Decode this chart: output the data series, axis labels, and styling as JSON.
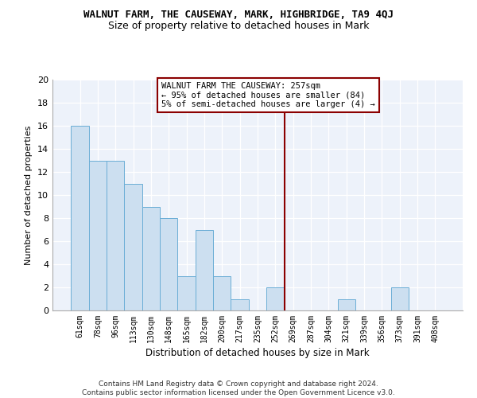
{
  "title": "WALNUT FARM, THE CAUSEWAY, MARK, HIGHBRIDGE, TA9 4QJ",
  "subtitle": "Size of property relative to detached houses in Mark",
  "xlabel": "Distribution of detached houses by size in Mark",
  "ylabel": "Number of detached properties",
  "categories": [
    "61sqm",
    "78sqm",
    "96sqm",
    "113sqm",
    "130sqm",
    "148sqm",
    "165sqm",
    "182sqm",
    "200sqm",
    "217sqm",
    "235sqm",
    "252sqm",
    "269sqm",
    "287sqm",
    "304sqm",
    "321sqm",
    "339sqm",
    "356sqm",
    "373sqm",
    "391sqm",
    "408sqm"
  ],
  "values": [
    16,
    13,
    13,
    11,
    9,
    8,
    3,
    7,
    3,
    1,
    0,
    2,
    0,
    0,
    0,
    1,
    0,
    0,
    2,
    0,
    0
  ],
  "bar_color": "#ccdff0",
  "bar_edge_color": "#6baed6",
  "vline_x_index": 11.5,
  "vline_color": "#8b0000",
  "annotation_text": "WALNUT FARM THE CAUSEWAY: 257sqm\n← 95% of detached houses are smaller (84)\n5% of semi-detached houses are larger (4) →",
  "annotation_box_color": "#8b0000",
  "ylim": [
    0,
    20
  ],
  "yticks": [
    0,
    2,
    4,
    6,
    8,
    10,
    12,
    14,
    16,
    18,
    20
  ],
  "footer": "Contains HM Land Registry data © Crown copyright and database right 2024.\nContains public sector information licensed under the Open Government Licence v3.0.",
  "background_color": "#edf2fa",
  "title_fontsize": 9,
  "subtitle_fontsize": 9,
  "annotation_fontsize": 7.5,
  "footer_fontsize": 6.5,
  "xlabel_fontsize": 8.5,
  "ylabel_fontsize": 8
}
